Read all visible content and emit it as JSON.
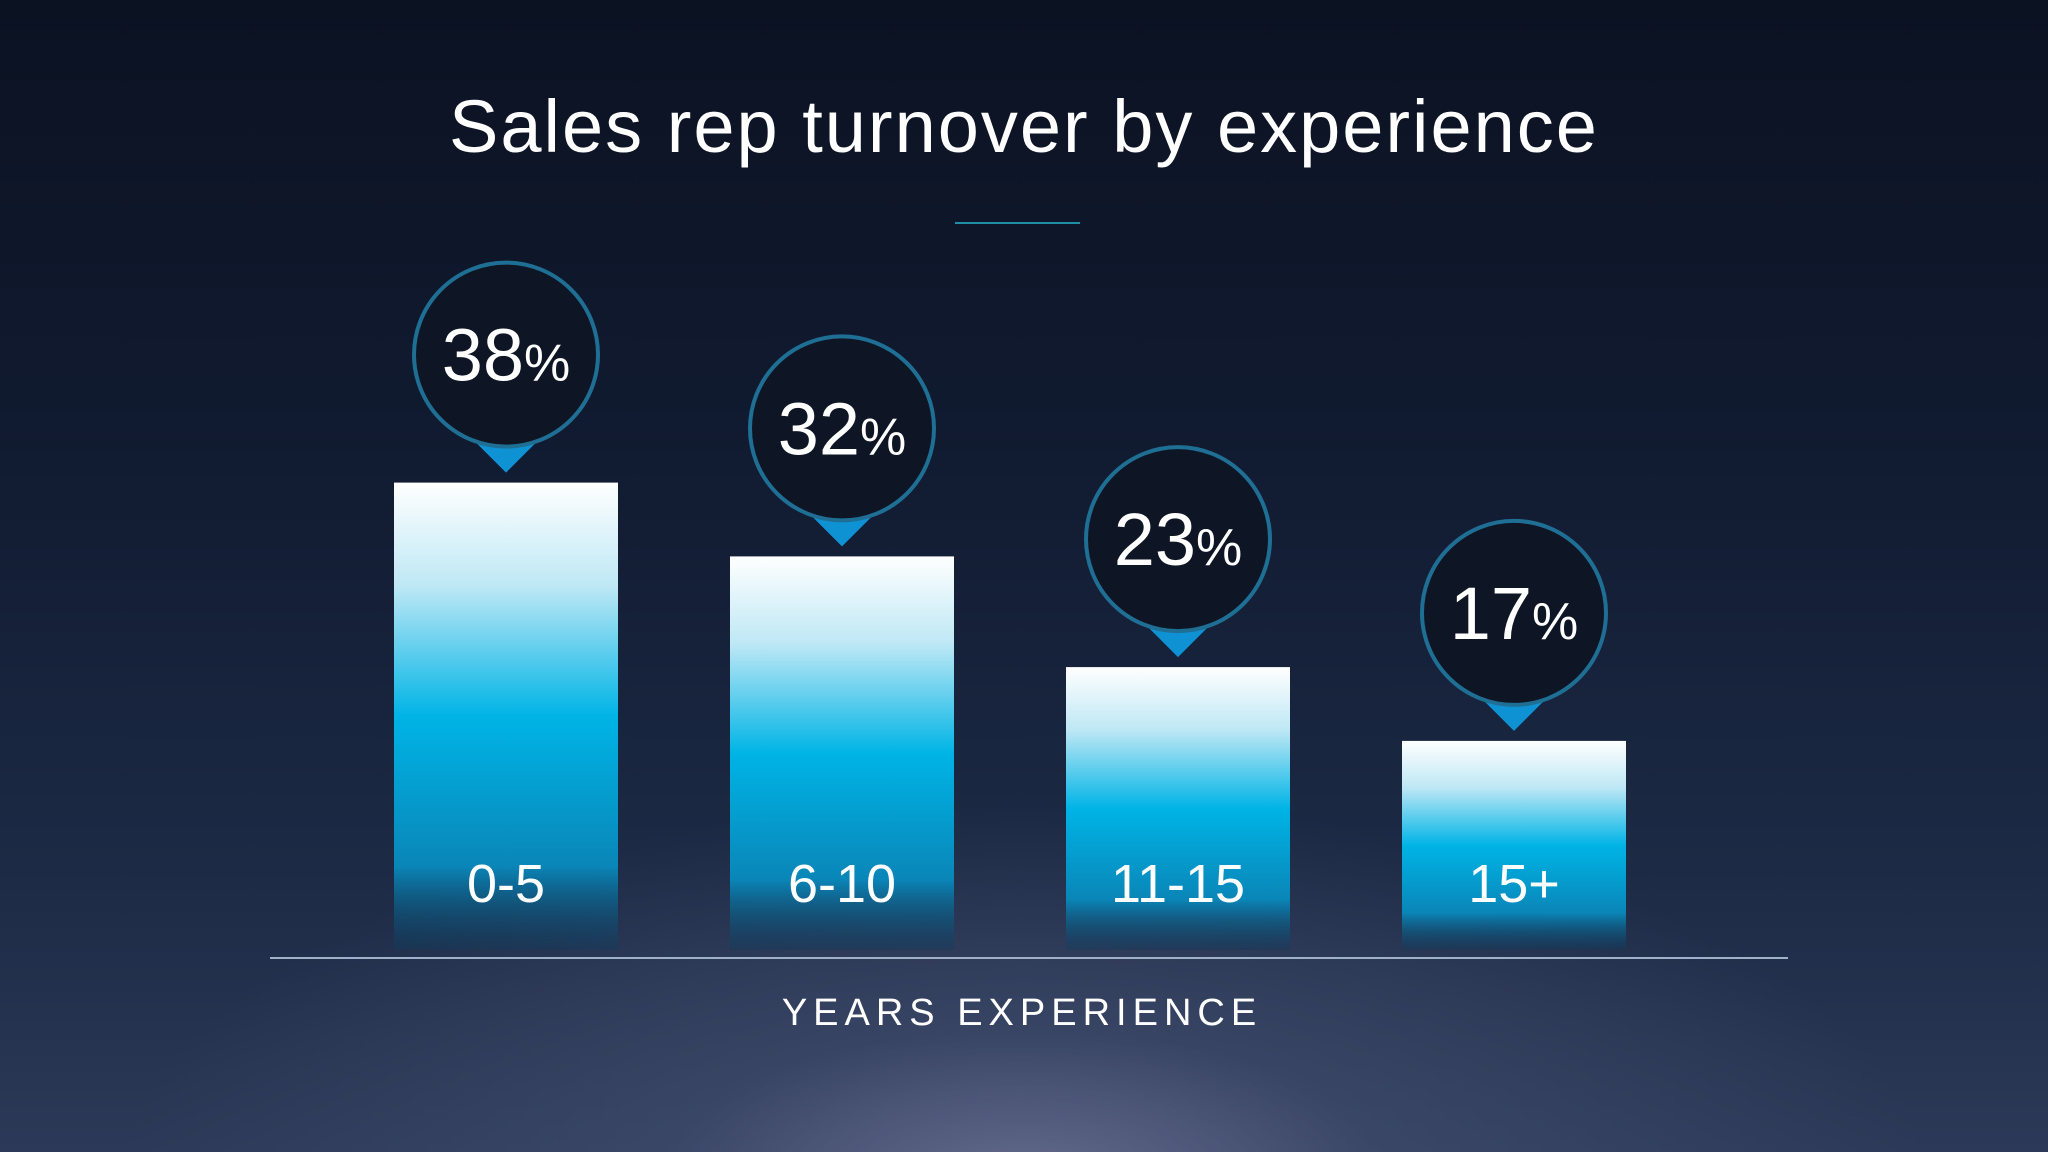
{
  "colors": {
    "bar_top": "#ffffff",
    "bar_mid": "#00b4e6",
    "bar_low": "#0a8fc4",
    "bubble_ring": "#1f6f94",
    "bubble_fill": "#0e1626",
    "pointer": "#0f92d4",
    "text": "#ffffff",
    "rule": "#9fb0c8",
    "title_rule": "#1f8fa6"
  },
  "chart_data": {
    "type": "bar",
    "title": "Sales rep turnover by experience",
    "xlabel": "YEARS EXPERIENCE",
    "ylabel": "",
    "categories": [
      "0-5",
      "6-10",
      "11-15",
      "15+"
    ],
    "values": [
      38,
      32,
      23,
      17
    ],
    "value_labels": [
      {
        "number": "38",
        "unit": "%"
      },
      {
        "number": "32",
        "unit": "%"
      },
      {
        "number": "23",
        "unit": "%"
      },
      {
        "number": "17",
        "unit": "%"
      }
    ],
    "ylim": [
      0,
      50
    ],
    "grid": false,
    "legend": "none"
  }
}
